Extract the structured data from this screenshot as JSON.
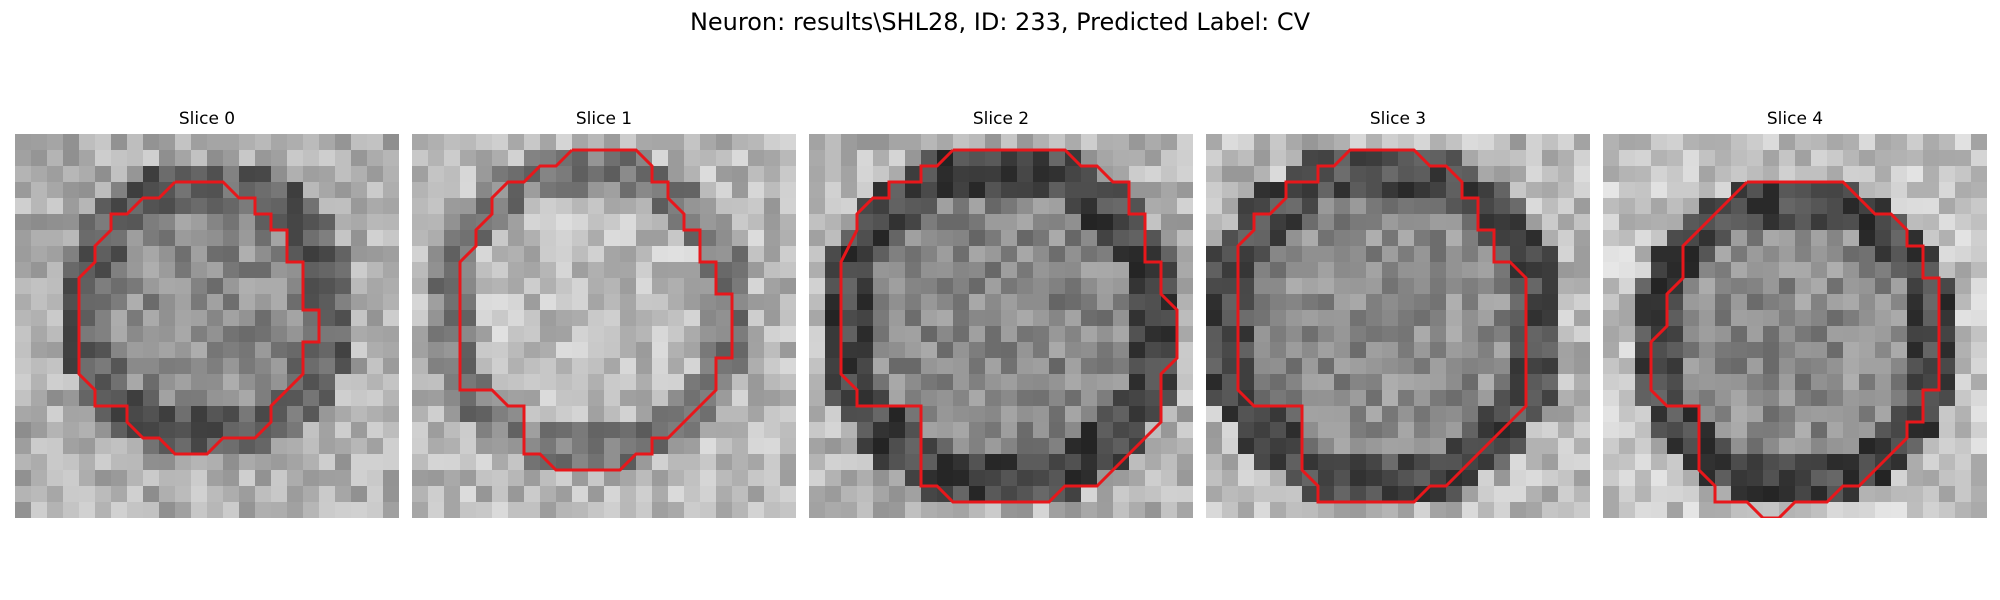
{
  "figure": {
    "title": "Neuron: results\\SHL28, ID: 233, Predicted Label: CV"
  },
  "colors": {
    "contour": "#e8171b",
    "background": "#ffffff"
  },
  "panels": [
    {
      "title": "Slice 0"
    },
    {
      "title": "Slice 1"
    },
    {
      "title": "Slice 2"
    },
    {
      "title": "Slice 3"
    },
    {
      "title": "Slice 4"
    }
  ]
}
